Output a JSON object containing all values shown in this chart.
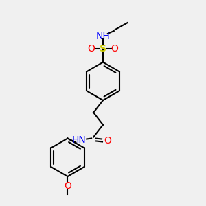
{
  "background_color": "#f0f0f0",
  "atom_colors": {
    "C": "#000000",
    "H": "#008080",
    "N": "#0000ff",
    "O": "#ff0000",
    "S": "#cccc00"
  },
  "bond_color": "#000000",
  "figsize": [
    3.0,
    3.0
  ],
  "dpi": 100
}
